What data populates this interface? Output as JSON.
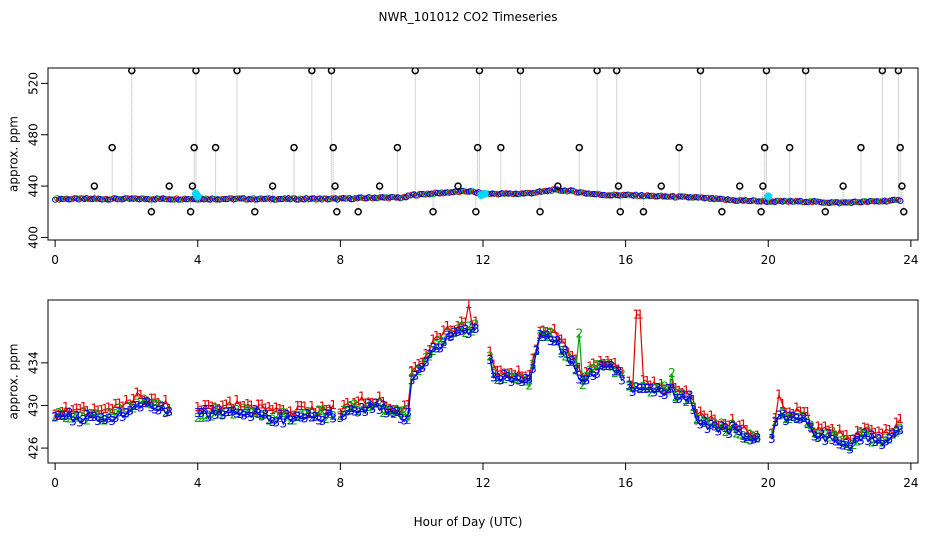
{
  "title": "NWR_101012  CO2 Timeseries",
  "xlabel": "Hour of Day (UTC)",
  "colors": {
    "black": "#000000",
    "red": "#e00000",
    "green": "#00a800",
    "blue": "#0000ee",
    "cyan": "#00d8ff",
    "gray": "#aaaaaa"
  },
  "chart_data": [
    {
      "type": "scatter",
      "name": "top",
      "ylabel": "approx. ppm",
      "xlim": [
        -0.2,
        24.2
      ],
      "ylim": [
        398,
        532
      ],
      "xticks": [
        0,
        4,
        8,
        12,
        16,
        20,
        24
      ],
      "yticks": [
        400,
        440,
        480,
        520
      ],
      "xticklabels": [
        "0",
        "4",
        "8",
        "12",
        "16",
        "20",
        "24"
      ],
      "yticklabels": [
        "400",
        "440",
        "480",
        "520"
      ],
      "baseline": [
        [
          0,
          430
        ],
        [
          1,
          430
        ],
        [
          2,
          430
        ],
        [
          3,
          430
        ],
        [
          4,
          430
        ],
        [
          5,
          430
        ],
        [
          6,
          430
        ],
        [
          7,
          430
        ],
        [
          8,
          430
        ],
        [
          9,
          431
        ],
        [
          9.8,
          431
        ],
        [
          10,
          433
        ],
        [
          11,
          435
        ],
        [
          11.6,
          436
        ],
        [
          12,
          434
        ],
        [
          13,
          434
        ],
        [
          13.5,
          435
        ],
        [
          14,
          437
        ],
        [
          14.5,
          436
        ],
        [
          15,
          434
        ],
        [
          15.5,
          433
        ],
        [
          16,
          433
        ],
        [
          17,
          432
        ],
        [
          18,
          431
        ],
        [
          19,
          429
        ],
        [
          20,
          428
        ],
        [
          21,
          428
        ],
        [
          22,
          427
        ],
        [
          23,
          428
        ],
        [
          23.7,
          429
        ]
      ],
      "outliers": [
        [
          1.1,
          440
        ],
        [
          1.6,
          470
        ],
        [
          2.15,
          530
        ],
        [
          2.7,
          420
        ],
        [
          3.2,
          440
        ],
        [
          3.8,
          420
        ],
        [
          3.85,
          440
        ],
        [
          3.9,
          470
        ],
        [
          3.95,
          530
        ],
        [
          4.5,
          470
        ],
        [
          5.1,
          530
        ],
        [
          5.6,
          420
        ],
        [
          6.1,
          440
        ],
        [
          6.7,
          470
        ],
        [
          7.2,
          530
        ],
        [
          7.75,
          530
        ],
        [
          7.8,
          470
        ],
        [
          7.85,
          440
        ],
        [
          7.9,
          420
        ],
        [
          8.5,
          420
        ],
        [
          9.1,
          440
        ],
        [
          9.6,
          470
        ],
        [
          10.1,
          530
        ],
        [
          10.6,
          420
        ],
        [
          11.3,
          440
        ],
        [
          11.8,
          420
        ],
        [
          11.85,
          470
        ],
        [
          11.9,
          530
        ],
        [
          12.5,
          470
        ],
        [
          13.05,
          530
        ],
        [
          13.6,
          420
        ],
        [
          14.1,
          440
        ],
        [
          14.7,
          470
        ],
        [
          15.2,
          530
        ],
        [
          15.75,
          530
        ],
        [
          15.8,
          440
        ],
        [
          15.85,
          420
        ],
        [
          16.5,
          420
        ],
        [
          17.0,
          440
        ],
        [
          17.5,
          470
        ],
        [
          18.1,
          530
        ],
        [
          18.7,
          420
        ],
        [
          19.2,
          440
        ],
        [
          19.8,
          420
        ],
        [
          19.85,
          440
        ],
        [
          19.9,
          470
        ],
        [
          19.95,
          530
        ],
        [
          20.6,
          470
        ],
        [
          21.05,
          530
        ],
        [
          21.6,
          420
        ],
        [
          22.1,
          440
        ],
        [
          22.6,
          470
        ],
        [
          23.2,
          530
        ],
        [
          23.65,
          530
        ],
        [
          23.7,
          470
        ],
        [
          23.75,
          440
        ],
        [
          23.8,
          420
        ]
      ],
      "cyan_points": [
        [
          3.95,
          434
        ],
        [
          4.0,
          432
        ],
        [
          11.95,
          433
        ],
        [
          12.05,
          434
        ],
        [
          20.0,
          432
        ]
      ]
    },
    {
      "type": "line",
      "name": "bottom",
      "ylabel": "approx. ppm",
      "xlim": [
        -0.2,
        24.2
      ],
      "ylim": [
        424.6,
        439.9
      ],
      "xticks": [
        0,
        4,
        8,
        12,
        16,
        20,
        24
      ],
      "yticks": [
        426,
        430,
        434
      ],
      "xticklabels": [
        "0",
        "4",
        "8",
        "12",
        "16",
        "20",
        "24"
      ],
      "yticklabels": [
        "426",
        "430",
        "434"
      ],
      "series": [
        {
          "name": "1",
          "color": "#e00000",
          "step": 0.1
        },
        {
          "name": "2",
          "color": "#00a800",
          "step": 0.1
        },
        {
          "name": "3",
          "color": "#0000ee",
          "step": 0.1
        }
      ],
      "gaps": [
        [
          3.25,
          3.95
        ],
        [
          7.8,
          7.95
        ],
        [
          11.8,
          12.1
        ],
        [
          15.9,
          16.05
        ],
        [
          19.8,
          20.05
        ]
      ],
      "curve": [
        [
          0,
          429.2
        ],
        [
          1,
          429.1
        ],
        [
          1.5,
          429.0
        ],
        [
          2.0,
          429.8
        ],
        [
          2.3,
          430.6
        ],
        [
          2.7,
          430.2
        ],
        [
          3.2,
          429.6
        ],
        [
          3.95,
          429.4
        ],
        [
          4.5,
          429.5
        ],
        [
          5.0,
          429.7
        ],
        [
          5.5,
          429.5
        ],
        [
          6.0,
          429.1
        ],
        [
          6.5,
          429.0
        ],
        [
          7.0,
          429.2
        ],
        [
          7.8,
          429.3
        ],
        [
          8.0,
          429.2
        ],
        [
          8.5,
          430.0
        ],
        [
          9.0,
          430.1
        ],
        [
          9.5,
          429.6
        ],
        [
          9.9,
          429.2
        ],
        [
          10.0,
          433.0
        ],
        [
          10.3,
          434.0
        ],
        [
          10.6,
          435.5
        ],
        [
          11.0,
          436.6
        ],
        [
          11.5,
          437.3
        ],
        [
          11.8,
          437.5
        ],
        [
          12.1,
          436.0
        ],
        [
          12.3,
          433.0
        ],
        [
          12.8,
          432.6
        ],
        [
          13.3,
          432.3
        ],
        [
          13.6,
          436.8
        ],
        [
          14.0,
          436.5
        ],
        [
          14.2,
          435.5
        ],
        [
          14.5,
          434.3
        ],
        [
          14.8,
          432.5
        ],
        [
          15.0,
          433.4
        ],
        [
          15.5,
          433.9
        ],
        [
          15.9,
          432.9
        ],
        [
          16.2,
          431.8
        ],
        [
          16.8,
          431.5
        ],
        [
          17.3,
          431.5
        ],
        [
          17.8,
          430.8
        ],
        [
          18.0,
          429.0
        ],
        [
          18.5,
          428.2
        ],
        [
          19.0,
          428.0
        ],
        [
          19.5,
          427.2
        ],
        [
          19.8,
          427.0
        ],
        [
          20.1,
          427.2
        ],
        [
          20.3,
          429.6
        ],
        [
          20.6,
          429.1
        ],
        [
          21.0,
          429.2
        ],
        [
          21.3,
          427.2
        ],
        [
          21.8,
          427.4
        ],
        [
          22.3,
          426.5
        ],
        [
          22.7,
          427.6
        ],
        [
          23.0,
          426.8
        ],
        [
          23.4,
          427.2
        ],
        [
          23.8,
          428.3
        ]
      ],
      "spikes": [
        {
          "series": "1",
          "x": 16.35,
          "y": 438.5
        },
        {
          "series": "1",
          "x": 20.3,
          "y": 431.0
        },
        {
          "series": "1",
          "x": 11.6,
          "y": 439.5
        },
        {
          "series": "2",
          "x": 14.7,
          "y": 436.7
        },
        {
          "series": "2",
          "x": 17.3,
          "y": 433.0
        }
      ]
    }
  ]
}
